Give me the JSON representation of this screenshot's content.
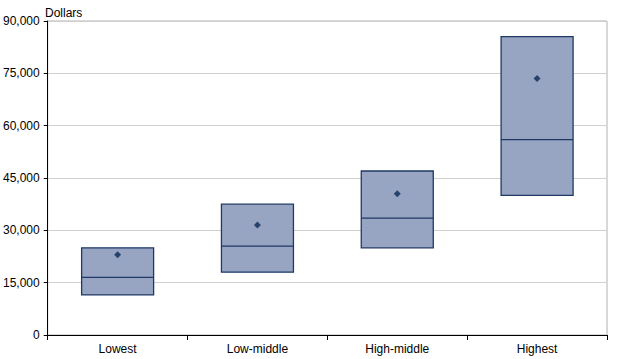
{
  "chart_data": {
    "type": "box",
    "y_label": "Dollars",
    "categories": [
      "Lowest",
      "Low-middle",
      "High-middle",
      "Highest"
    ],
    "lower_quartile": [
      11500,
      18000,
      25000,
      40000
    ],
    "median": [
      16500,
      25500,
      33500,
      56000
    ],
    "upper_quartile": [
      25000,
      37500,
      47000,
      85500
    ],
    "mean": [
      23000,
      31500,
      40500,
      73500
    ],
    "color": "#97a5c3",
    "ylim": [
      0,
      90000
    ],
    "yticks": [
      0,
      {
        "value": 15000,
        "label": "15,000"
      },
      {
        "value": 30000,
        "label": "30,000"
      },
      {
        "value": 45000,
        "label": "45,000"
      },
      {
        "value": 60000,
        "label": "60,000"
      },
      {
        "value": 75000,
        "label": "75,000"
      },
      {
        "value": 90000,
        "label": "90,000"
      }
    ],
    "grid": true
  }
}
